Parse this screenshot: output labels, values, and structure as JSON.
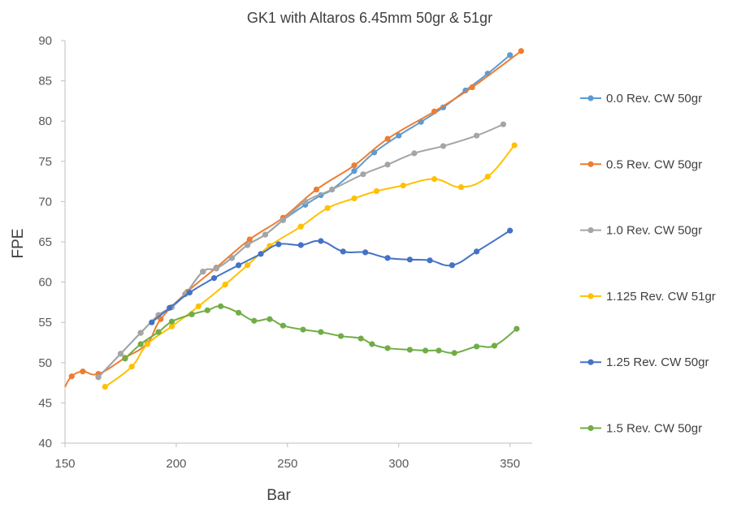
{
  "chart_data": {
    "type": "line",
    "title": "GK1 with Altaros 6.45mm 50gr & 51gr",
    "xlabel": "Bar",
    "ylabel": "FPE",
    "xlim": [
      150,
      360
    ],
    "ylim": [
      40,
      90
    ],
    "x_ticks": [
      150,
      200,
      250,
      300,
      350
    ],
    "y_ticks": [
      40,
      45,
      50,
      55,
      60,
      65,
      70,
      75,
      80,
      85,
      90
    ],
    "grid": false,
    "legend_position": "right",
    "series": [
      {
        "name": "0.0 Rev. CW 50gr",
        "color": "#5B9BD5",
        "x": [
          165,
          175,
          184,
          192,
          198,
          204,
          212,
          218,
          225,
          232,
          240,
          248,
          258,
          265,
          270,
          280,
          289,
          300,
          310,
          320,
          330,
          340,
          350
        ],
        "y": [
          48.2,
          51.1,
          53.7,
          55.9,
          56.9,
          58.5,
          61.3,
          61.7,
          63.0,
          64.6,
          65.9,
          67.7,
          69.6,
          70.8,
          71.5,
          73.8,
          76.1,
          78.2,
          79.9,
          81.7,
          83.8,
          85.9,
          88.2
        ]
      },
      {
        "name": "0.5 Rev. CW 50gr",
        "color": "#ED7D31",
        "x": [
          150,
          153,
          158,
          165,
          177,
          187,
          193,
          205,
          218,
          233,
          248,
          263,
          280,
          295,
          316,
          333,
          355
        ],
        "y": [
          47,
          48.3,
          48.9,
          48.6,
          50.6,
          52.4,
          55.4,
          58.8,
          61.8,
          65.3,
          68.0,
          71.5,
          74.5,
          77.8,
          81.2,
          84.2,
          88.7
        ]
      },
      {
        "name": "1.0 Rev. CW 50gr",
        "color": "#A5A5A5",
        "x": [
          165,
          175,
          184,
          192,
          198,
          204,
          212,
          218,
          225,
          232,
          240,
          248,
          258,
          270,
          284,
          295,
          307,
          320,
          335,
          347
        ],
        "y": [
          48.2,
          51.1,
          53.7,
          55.9,
          56.9,
          58.5,
          61.3,
          61.7,
          63.0,
          64.6,
          65.9,
          67.7,
          70.0,
          71.5,
          73.4,
          74.6,
          76.0,
          76.9,
          78.2,
          79.6
        ]
      },
      {
        "name": "1.125 Rev. CW 51gr",
        "color": "#FFC000",
        "x": [
          168,
          180,
          187,
          198,
          210,
          222,
          232,
          242,
          256,
          268,
          280,
          290,
          302,
          316,
          328,
          340,
          352
        ],
        "y": [
          47.0,
          49.5,
          52.3,
          54.5,
          57.0,
          59.7,
          62.1,
          64.5,
          66.9,
          69.2,
          70.4,
          71.3,
          72.0,
          72.8,
          71.8,
          73.1,
          77.0
        ]
      },
      {
        "name": "1.25 Rev. CW 50gr",
        "color": "#4472C4",
        "x": [
          189,
          197,
          206,
          217,
          228,
          238,
          246,
          256,
          265,
          275,
          285,
          295,
          305,
          314,
          324,
          335,
          350
        ],
        "y": [
          55.0,
          56.8,
          58.7,
          60.5,
          62.1,
          63.5,
          64.7,
          64.6,
          65.1,
          63.8,
          63.7,
          63.0,
          62.8,
          62.7,
          62.1,
          63.8,
          66.4
        ]
      },
      {
        "name": "1.5 Rev. CW 50gr",
        "color": "#70AD47",
        "x": [
          177,
          184,
          192,
          198,
          207,
          214,
          220,
          228,
          235,
          242,
          248,
          257,
          265,
          274,
          283,
          288,
          295,
          305,
          312,
          318,
          325,
          335,
          343,
          353
        ],
        "y": [
          50.5,
          52.3,
          53.8,
          55.1,
          56.0,
          56.5,
          57.0,
          56.2,
          55.2,
          55.4,
          54.6,
          54.1,
          53.8,
          53.3,
          53.0,
          52.3,
          51.8,
          51.6,
          51.5,
          51.5,
          51.2,
          52.0,
          52.1,
          54.2
        ]
      }
    ]
  }
}
